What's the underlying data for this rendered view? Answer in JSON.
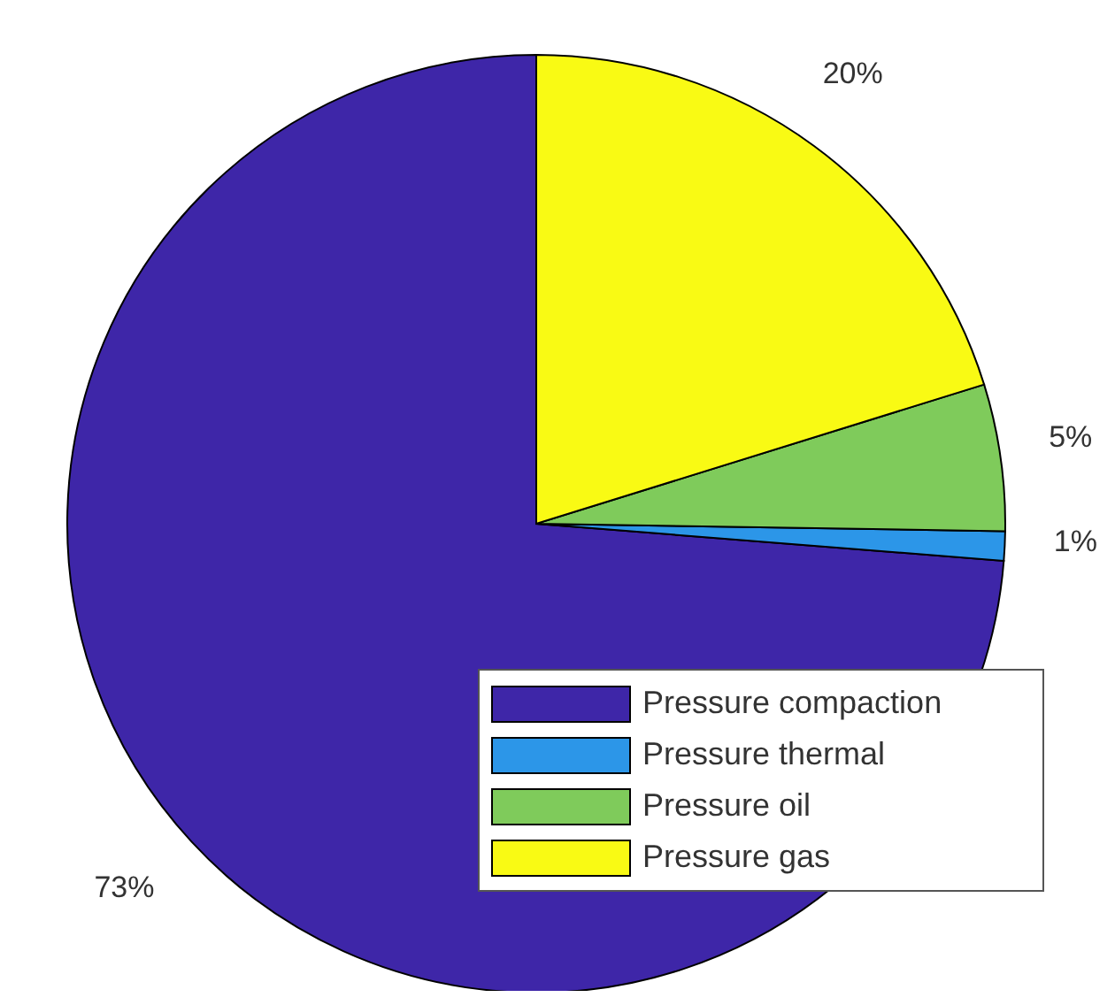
{
  "chart_data": {
    "type": "pie",
    "categories": [
      "Pressure compaction",
      "Pressure thermal",
      "Pressure oil",
      "Pressure gas"
    ],
    "values": [
      73,
      1,
      5,
      20
    ],
    "colors": [
      "#3e26a8",
      "#2c96e8",
      "#7fcb5b",
      "#f9fa14"
    ],
    "value_labels": [
      "73%",
      "1%",
      "5%",
      "20%"
    ],
    "legend": "bottom right"
  }
}
